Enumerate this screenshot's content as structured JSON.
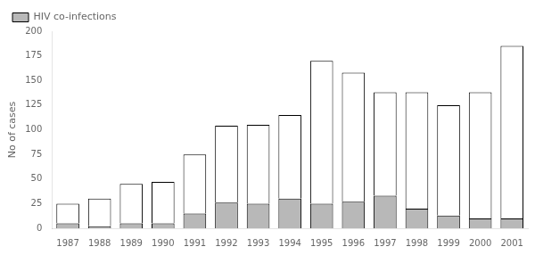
{
  "chart_data": {
    "type": "bar",
    "categories": [
      "1987",
      "1988",
      "1989",
      "1990",
      "1991",
      "1992",
      "1993",
      "1994",
      "1995",
      "1996",
      "1997",
      "1998",
      "1999",
      "2000",
      "2001"
    ],
    "series": [
      {
        "name": "HIV co-infections",
        "color": "#b8b8b8",
        "values": [
          5,
          2,
          5,
          5,
          15,
          26,
          25,
          30,
          25,
          27,
          33,
          20,
          13,
          10,
          10
        ]
      },
      {
        "color": "#ffffff",
        "values": [
          20,
          28,
          40,
          42,
          60,
          78,
          80,
          85,
          145,
          131,
          105,
          118,
          112,
          128,
          175
        ]
      }
    ],
    "stacked": true,
    "ylabel": "No of cases",
    "ylim": [
      0,
      200
    ],
    "yticks": [
      0,
      25,
      50,
      75,
      100,
      125,
      150,
      175,
      200
    ],
    "grid": false,
    "legend": "upper left"
  }
}
